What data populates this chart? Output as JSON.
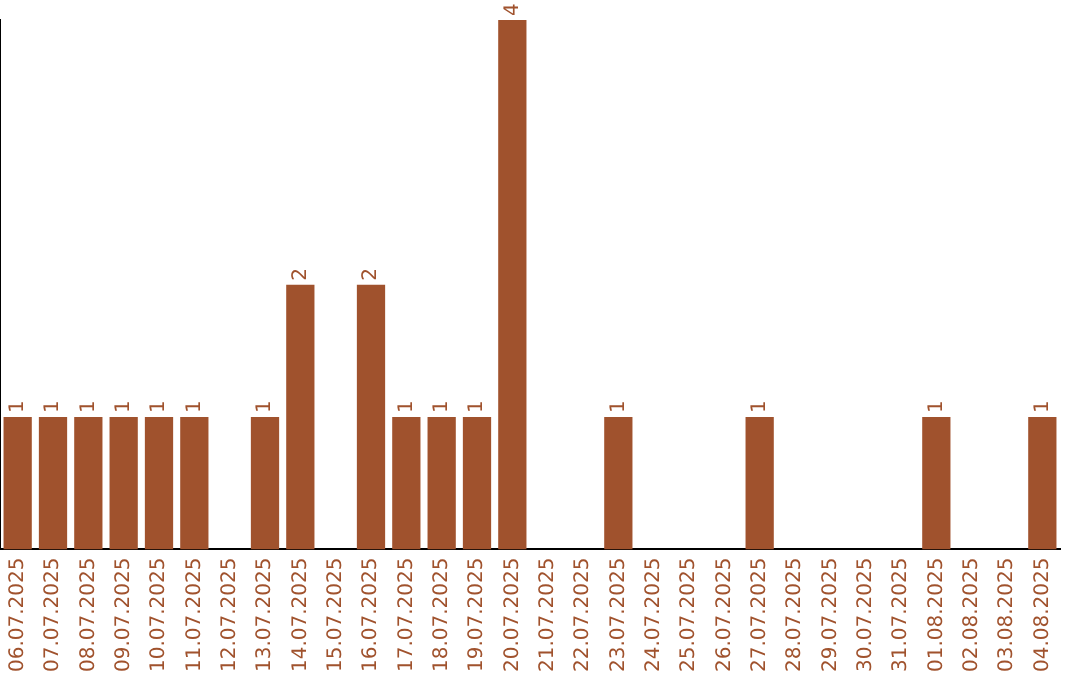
{
  "chart_data": {
    "type": "bar",
    "categories": [
      "06.07.2025",
      "07.07.2025",
      "08.07.2025",
      "09.07.2025",
      "10.07.2025",
      "11.07.2025",
      "12.07.2025",
      "13.07.2025",
      "14.07.2025",
      "15.07.2025",
      "16.07.2025",
      "17.07.2025",
      "18.07.2025",
      "19.07.2025",
      "20.07.2025",
      "21.07.2025",
      "22.07.2025",
      "23.07.2025",
      "24.07.2025",
      "25.07.2025",
      "26.07.2025",
      "27.07.2025",
      "28.07.2025",
      "29.07.2025",
      "30.07.2025",
      "31.07.2025",
      "01.08.2025",
      "02.08.2025",
      "03.08.2025",
      "04.08.2025"
    ],
    "values": [
      1,
      1,
      1,
      1,
      1,
      1,
      0,
      1,
      2,
      0,
      2,
      1,
      1,
      1,
      4,
      0,
      0,
      1,
      0,
      0,
      0,
      1,
      0,
      0,
      0,
      0,
      1,
      0,
      0,
      1
    ],
    "value_labels": [
      "1",
      "1",
      "1",
      "1",
      "1",
      "1",
      null,
      "1",
      "2",
      null,
      "2",
      "1",
      "1",
      "1",
      "4",
      null,
      null,
      "1",
      null,
      null,
      null,
      "1",
      null,
      null,
      null,
      null,
      "1",
      null,
      null,
      "1"
    ],
    "color": "#a0522d",
    "tick_labels": "x",
    "grid": false,
    "legend": false
  }
}
